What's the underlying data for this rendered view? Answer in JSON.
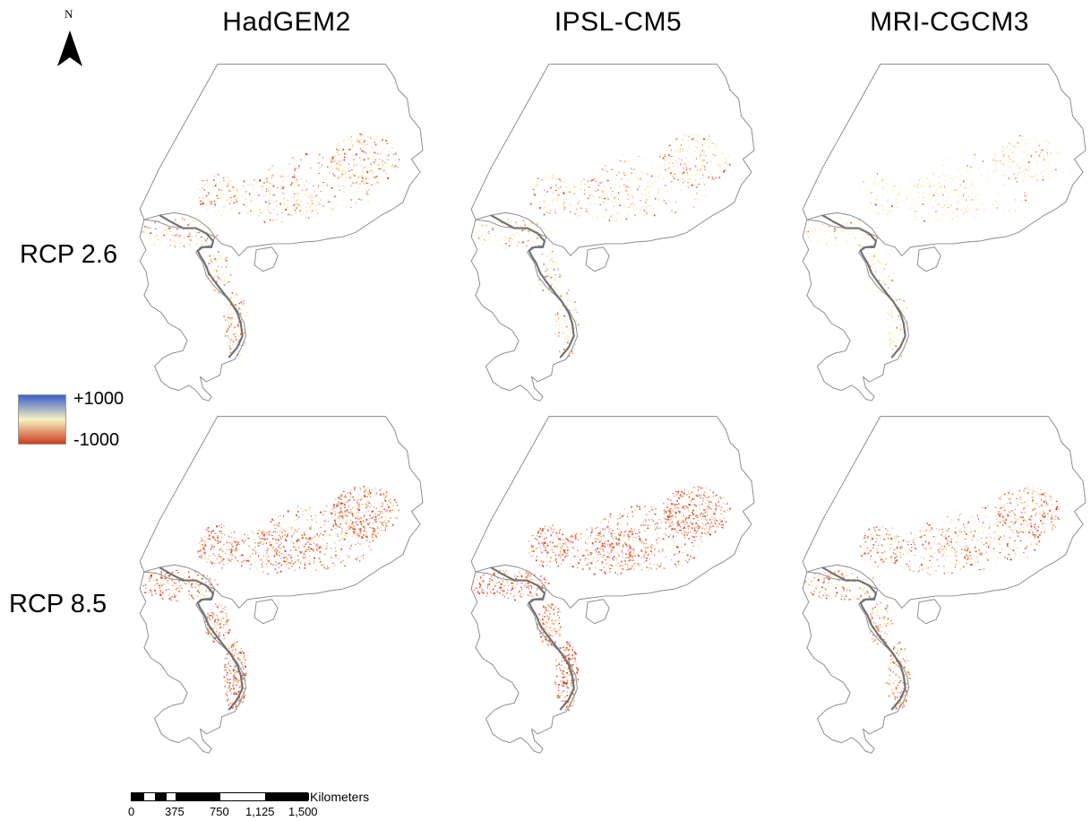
{
  "north_arrow": {
    "label": "N",
    "icon": "north-arrow-icon"
  },
  "column_titles": [
    "HadGEM2",
    "IPSL-CM5",
    "MRI-CGCM3"
  ],
  "row_titles": [
    "RCP 2.6",
    "RCP 8.5"
  ],
  "legend": {
    "max_label": "+1000",
    "min_label": "-1000",
    "colors": {
      "high": "#3a5ec9",
      "mid": "#f6f2c2",
      "low": "#cc3d1e"
    }
  },
  "scale_bar": {
    "unit": "Kilometers",
    "ticks": [
      "0",
      "375",
      "750",
      "1,125",
      "1,500"
    ]
  },
  "map_colors": {
    "outline": "#8a8a8a",
    "border": "#707070",
    "low": "#cc3d1e",
    "mid": "#f0a05a",
    "pale": "#f6e8a8"
  },
  "panels": [
    {
      "model": "HadGEM2",
      "scenario": "RCP 2.6",
      "intensity": 0.45,
      "seed": 11
    },
    {
      "model": "IPSL-CM5",
      "scenario": "RCP 2.6",
      "intensity": 0.35,
      "seed": 23
    },
    {
      "model": "MRI-CGCM3",
      "scenario": "RCP 2.6",
      "intensity": 0.15,
      "seed": 37
    },
    {
      "model": "HadGEM2",
      "scenario": "RCP 8.5",
      "intensity": 0.85,
      "seed": 41
    },
    {
      "model": "IPSL-CM5",
      "scenario": "RCP 8.5",
      "intensity": 0.9,
      "seed": 53
    },
    {
      "model": "MRI-CGCM3",
      "scenario": "RCP 8.5",
      "intensity": 0.6,
      "seed": 67
    }
  ]
}
